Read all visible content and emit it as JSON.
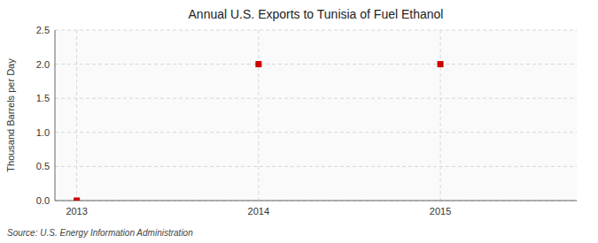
{
  "chart_data": {
    "type": "scatter",
    "title": "Annual U.S. Exports to Tunisia of Fuel Ethanol",
    "y_label": "Thousand Barrels per Day",
    "source": "Source: U.S. Energy Information Administration",
    "x": [
      2013,
      2014,
      2015
    ],
    "values": [
      0.0,
      2.0,
      2.0
    ],
    "xlim": [
      2012.88,
      2015.75
    ],
    "ylim": [
      0.0,
      2.5
    ],
    "xticks": [
      2013,
      2014,
      2015
    ],
    "yticks": [
      {
        "value": 0.0,
        "label": "0.0"
      },
      0.5,
      {
        "value": 1.0,
        "label": "1.0"
      },
      1.5,
      {
        "value": 2.0,
        "label": "2.0"
      },
      2.5
    ],
    "grid": true,
    "marker": "square",
    "color": "#cc0000"
  }
}
